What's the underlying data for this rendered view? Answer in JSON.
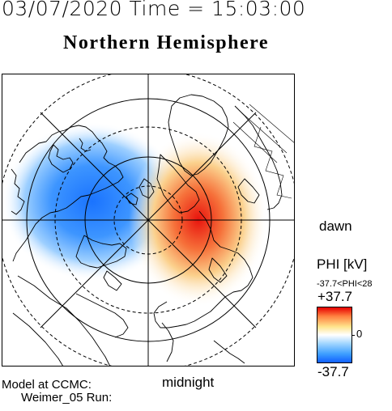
{
  "header": {
    "date_time_line": "03/07/2020 Time = 15:03:00"
  },
  "map": {
    "title": "Northern Hemisphere",
    "bottom_label": "midnight",
    "right_label": "dawn",
    "colors": {
      "positive_potential": "#e60000",
      "negative_potential": "#1a73ff",
      "coastline": "#000000"
    }
  },
  "colorbar": {
    "quantity_label": "PHI [kV]",
    "range_text": "-37.7<PHI<28",
    "max_label": "+37.7",
    "zero_label": "0",
    "min_label": "-37.7"
  },
  "footer": {
    "model_line": "Model at CCMC:",
    "run_line": "Weimer_05 Run:"
  }
}
